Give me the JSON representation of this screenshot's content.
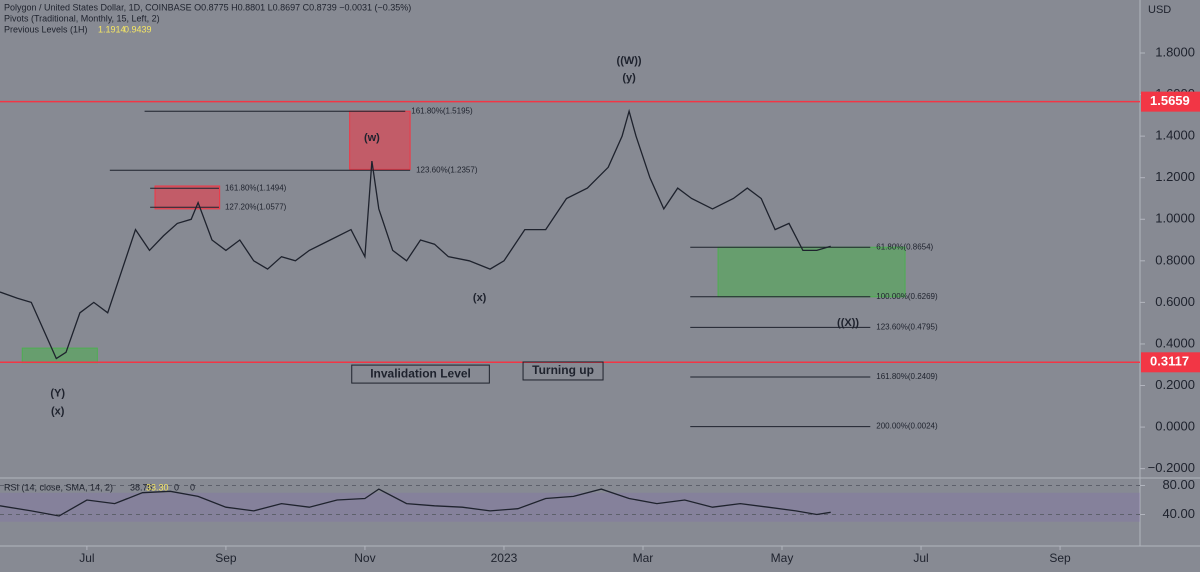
{
  "header": {
    "lines": [
      "Polygon / United States Dollar, 1D, COINBASE  O0.8775 H0.8801 L0.8697 C0.8739 −0.0031 (−0.35%)",
      "Pivots (Traditional, Monthly, 15, Left, 2)",
      "Previous Levels (1H)"
    ],
    "previous_levels": [
      "1.1914",
      "0.9439"
    ],
    "currency": "USD"
  },
  "chart_data": [
    {
      "type": "line",
      "color": "#1e222d",
      "x": [
        -1.25,
        -1.0,
        -0.8,
        -0.6,
        -0.44,
        -0.3,
        -0.1,
        0.1,
        0.3,
        0.5,
        0.7,
        0.9,
        1.1,
        1.3,
        1.5,
        1.6,
        1.8,
        2.0,
        2.2,
        2.4,
        2.6,
        2.8,
        3.0,
        3.2,
        3.5,
        3.8,
        4.0,
        4.1,
        4.2,
        4.4,
        4.6,
        4.8,
        5.0,
        5.2,
        5.5,
        5.8,
        6.0,
        6.3,
        6.6,
        6.9,
        7.2,
        7.5,
        7.7,
        7.8,
        7.9,
        8.1,
        8.3,
        8.5,
        8.7,
        9.0,
        9.3,
        9.5,
        9.7,
        9.9,
        10.1,
        10.3,
        10.5,
        10.7
      ],
      "values": [
        0.65,
        0.62,
        0.6,
        0.45,
        0.33,
        0.36,
        0.55,
        0.6,
        0.55,
        0.75,
        0.95,
        0.85,
        0.92,
        0.98,
        1.0,
        1.08,
        0.9,
        0.85,
        0.9,
        0.8,
        0.76,
        0.82,
        0.8,
        0.85,
        0.9,
        0.95,
        0.82,
        1.28,
        1.05,
        0.85,
        0.8,
        0.9,
        0.88,
        0.82,
        0.8,
        0.76,
        0.8,
        0.95,
        0.95,
        1.1,
        1.15,
        1.25,
        1.4,
        1.52,
        1.4,
        1.2,
        1.05,
        1.15,
        1.1,
        1.05,
        1.1,
        1.15,
        1.1,
        0.95,
        0.98,
        0.85,
        0.85,
        0.87
      ],
      "xlim": [
        -1.25,
        15.15
      ],
      "ylim": [
        -0.245,
        2.055
      ],
      "xticks": [
        {
          "value": 0,
          "label": "Jul"
        },
        {
          "value": 2,
          "label": "Sep"
        },
        {
          "value": 4,
          "label": "Nov"
        },
        {
          "value": 6,
          "label": "2023"
        },
        {
          "value": 8,
          "label": "Mar"
        },
        {
          "value": 10,
          "label": "May"
        },
        {
          "value": 12,
          "label": "Jul"
        },
        {
          "value": 14,
          "label": "Sep"
        }
      ],
      "yticks": [
        {
          "value": 1.8,
          "label": "1.8000"
        },
        {
          "value": 1.6,
          "label": "1.6000"
        },
        {
          "value": 1.4,
          "label": "1.4000"
        },
        {
          "value": 1.2,
          "label": "1.2000"
        },
        {
          "value": 1.0,
          "label": "1.0000"
        },
        {
          "value": 0.8,
          "label": "0.8000"
        },
        {
          "value": 0.6,
          "label": "0.6000"
        },
        {
          "value": 0.4,
          "label": "0.4000"
        },
        {
          "value": 0.2,
          "label": "0.2000"
        },
        {
          "value": 0,
          "label": "0.0000"
        },
        {
          "value": -0.2,
          "label": "−0.2000"
        }
      ],
      "price_lines": [
        {
          "value": 1.5659,
          "label": "1.5659",
          "color": "#f23645"
        },
        {
          "value": 0.3117,
          "label": "0.3117",
          "color": "#f23645"
        }
      ],
      "fib_levels": [
        {
          "value": 0.8654,
          "label": "61.80%(0.8654)",
          "x": [
            8.68,
            11.27
          ]
        },
        {
          "value": 0.6269,
          "label": "100.00%(0.6269)",
          "x": [
            8.68,
            11.27
          ]
        },
        {
          "value": 0.4795,
          "label": "123.60%(0.4795)",
          "x": [
            8.68,
            11.27
          ]
        },
        {
          "value": 0.2409,
          "label": "161.80%(0.2409)",
          "x": [
            8.68,
            11.27
          ]
        },
        {
          "value": 0.0024,
          "label": "200.00%(0.0024)",
          "x": [
            8.68,
            11.27
          ]
        },
        {
          "value": 1.5195,
          "label": "161.80%(1.5195)",
          "x": [
            0.83,
            4.58
          ]
        },
        {
          "value": 1.2357,
          "label": "123.60%(1.2357)",
          "x": [
            0.33,
            4.65
          ]
        },
        {
          "value": 1.1494,
          "label": "161.80%(1.1494)",
          "x": [
            0.91,
            1.9
          ]
        },
        {
          "value": 1.0577,
          "label": "127.20%(1.0577)",
          "x": [
            0.91,
            1.9
          ]
        }
      ],
      "zones": [
        {
          "x": [
            9.08,
            11.77
          ],
          "y": [
            0.6269,
            0.8654
          ],
          "color": "#4caf50"
        },
        {
          "x": [
            -0.93,
            0.15
          ],
          "y": [
            0.31,
            0.38
          ],
          "color": "#4caf50"
        },
        {
          "x": [
            3.78,
            4.65
          ],
          "y": [
            1.24,
            1.52
          ],
          "color": "#f23645"
        },
        {
          "x": [
            0.98,
            1.91
          ],
          "y": [
            1.05,
            1.16
          ],
          "color": "#f23645"
        }
      ],
      "annotations": [
        {
          "text": "((W))",
          "x": 7.8,
          "y": 1.76
        },
        {
          "text": "(y)",
          "x": 7.8,
          "y": 1.68
        },
        {
          "text": "(w)",
          "x": 4.1,
          "y": 1.39
        },
        {
          "text": "(x)",
          "x": 5.65,
          "y": 0.62
        },
        {
          "text": "(Y)",
          "x": -0.42,
          "y": 0.16
        },
        {
          "text": "(x)",
          "x": -0.42,
          "y": 0.075
        },
        {
          "text": "((X))",
          "x": 10.95,
          "y": 0.5
        },
        {
          "text": "Invalidation Level",
          "x": 4.8,
          "y": 0.255,
          "boxed": true
        },
        {
          "text": "Turning up",
          "x": 6.85,
          "y": 0.27,
          "boxed": true
        }
      ]
    },
    {
      "type": "line",
      "title": "RSI (14, close, SMA, 14, 2)",
      "readout": [
        "38.76",
        "33.30",
        "0",
        "0"
      ],
      "color": "#1e222d",
      "x": [
        -1.25,
        -0.8,
        -0.4,
        0.0,
        0.4,
        0.8,
        1.2,
        1.6,
        2.0,
        2.4,
        2.8,
        3.2,
        3.6,
        4.0,
        4.2,
        4.6,
        5.0,
        5.4,
        5.8,
        6.2,
        6.6,
        7.0,
        7.4,
        7.8,
        8.2,
        8.6,
        9.0,
        9.4,
        9.8,
        10.2,
        10.5,
        10.7
      ],
      "values": [
        52,
        45,
        38,
        60,
        55,
        70,
        72,
        65,
        50,
        45,
        55,
        50,
        60,
        62,
        75,
        55,
        52,
        50,
        45,
        48,
        62,
        65,
        75,
        62,
        55,
        60,
        50,
        55,
        50,
        45,
        40,
        43
      ],
      "xlim": [
        -1.25,
        15.15
      ],
      "ylim": [
        -3.4,
        90.3
      ],
      "yticks": [
        {
          "value": 80,
          "label": "80.00"
        },
        {
          "value": 40,
          "label": "40.00"
        }
      ],
      "band": [
        30,
        70
      ]
    }
  ]
}
